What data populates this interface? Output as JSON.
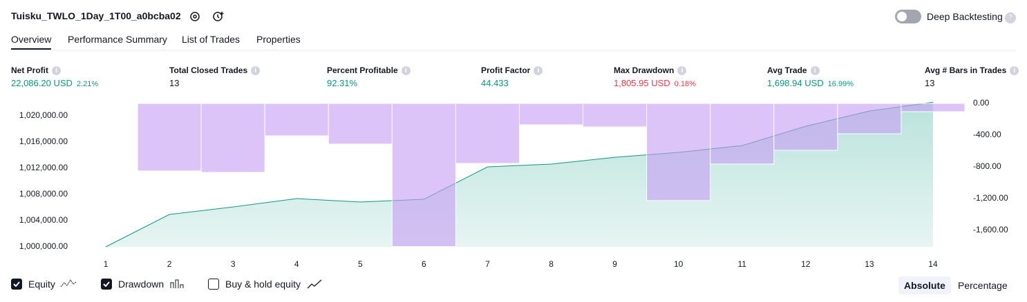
{
  "header": {
    "title": "Tuisku_TWLO_1Day_1T00_a0bcba02",
    "toggle_label": "Deep Backtesting"
  },
  "tabs": [
    "Overview",
    "Performance Summary",
    "List of Trades",
    "Properties"
  ],
  "metrics": [
    {
      "label": "Net Profit",
      "value": "22,086.20 USD",
      "pct": "2.21%"
    },
    {
      "label": "Total Closed Trades",
      "value": "13"
    },
    {
      "label": "Percent Profitable",
      "value": "92.31%"
    },
    {
      "label": "Profit Factor",
      "value": "44.433"
    },
    {
      "label": "Max Drawdown",
      "value": "1,805.95 USD",
      "pct": "0.18%"
    },
    {
      "label": "Avg Trade",
      "value": "1,698.94 USD",
      "pct": "16.99%"
    },
    {
      "label": "Avg # Bars in Trades",
      "value": "13"
    }
  ],
  "chart_data": {
    "type": "combo",
    "x": [
      1,
      2,
      3,
      4,
      5,
      6,
      7,
      8,
      9,
      10,
      11,
      12,
      13,
      14
    ],
    "xlim": [
      0.5,
      14.5
    ],
    "xticks": [
      1,
      2,
      3,
      4,
      5,
      6,
      7,
      8,
      9,
      10,
      11,
      12,
      13,
      14
    ],
    "ylim": [
      1000000,
      1021900
    ],
    "yticks": [
      {
        "value": 1000000,
        "label": "1,000,000.00"
      },
      {
        "value": 1004000,
        "label": "1,004,000.00"
      },
      {
        "value": 1008000,
        "label": "1,008,000.00"
      },
      {
        "value": 1012000,
        "label": "1,012,000.00"
      },
      {
        "value": 1016000,
        "label": "1,016,000.00"
      },
      {
        "value": 1020000,
        "label": "1,020,000.00"
      }
    ],
    "y2lim": [
      -1810,
      0
    ],
    "y2ticks": [
      {
        "value": 0,
        "label": "0.00"
      },
      {
        "value": -400,
        "label": "-400.00"
      },
      {
        "value": -800,
        "label": "-800.00"
      },
      {
        "value": -1200,
        "label": "-1,200.00"
      },
      {
        "value": -1600,
        "label": "-1,600.00"
      }
    ],
    "series": [
      {
        "name": "Equity",
        "type": "area",
        "color": "#089981",
        "values": [
          1000000,
          1004950,
          1006100,
          1007370,
          1006840,
          1007260,
          1012210,
          1012630,
          1013680,
          1014420,
          1015470,
          1018420,
          1020740,
          1022086
        ]
      },
      {
        "name": "Drawdown",
        "type": "bar",
        "axis": "y2",
        "color": "#c69cf4",
        "values": [
          -8,
          -852,
          -870,
          -409,
          -513,
          -1806,
          -757,
          -270,
          -296,
          -1226,
          -765,
          -591,
          -383,
          -104
        ]
      }
    ],
    "buy_hold_label": "Buy & hold equity"
  },
  "modes": [
    "Absolute",
    "Percentage"
  ]
}
